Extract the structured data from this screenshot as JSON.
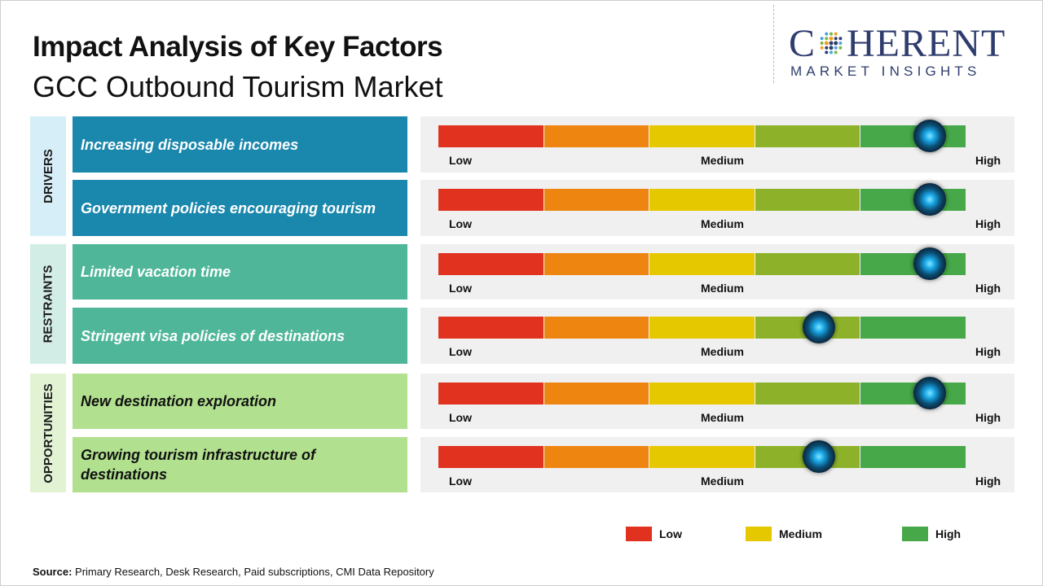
{
  "header": {
    "title": "Impact Analysis of Key Factors",
    "subtitle": "GCC Outbound Tourism Market"
  },
  "logo": {
    "word_left": "C",
    "word_right": "HERENT",
    "tagline": "MARKET INSIGHTS"
  },
  "scale_labels": {
    "low": "Low",
    "medium": "Medium",
    "high": "High"
  },
  "colors": {
    "segments": [
      "#e0321e",
      "#ee8510",
      "#e6c800",
      "#8db22a",
      "#46a848"
    ],
    "category_drivers": "#d6eef7",
    "category_restraints": "#d2ede5",
    "category_opportunities": "#e2f3d4",
    "factor_drivers": "#1a87ad",
    "factor_restraints": "#4fb699",
    "factor_opportunities": "#b1e08f"
  },
  "categories": [
    {
      "label": "DRIVERS"
    },
    {
      "label": "RESTRAINTS"
    },
    {
      "label": "OPPORTUNITIES"
    }
  ],
  "factors": [
    {
      "label": "Increasing disposable incomes"
    },
    {
      "label": "Government policies encouraging tourism"
    },
    {
      "label": "Limited vacation time"
    },
    {
      "label": "Stringent visa policies of destinations"
    },
    {
      "label": "New destination exploration"
    },
    {
      "label": "Growing tourism infrastructure of destinations"
    }
  ],
  "legend": [
    {
      "label": "Low",
      "color": "#e0321e"
    },
    {
      "label": "Medium",
      "color": "#e6c800"
    },
    {
      "label": "High",
      "color": "#46a848"
    }
  ],
  "source": {
    "prefix": "Source:",
    "text": "Primary Research, Desk Research, Paid subscriptions, CMI Data Repository"
  },
  "chart_data": {
    "type": "bar",
    "title": "Impact Analysis of Key Factors",
    "subtitle": "GCC Outbound Tourism Market",
    "scale": [
      "Low",
      "Medium",
      "High"
    ],
    "xlim": [
      0,
      1
    ],
    "categories": [
      "Increasing disposable incomes",
      "Government policies encouraging tourism",
      "Limited vacation time",
      "Stringent visa policies of destinations",
      "New destination exploration",
      "Growing tourism infrastructure of destinations"
    ],
    "groups": [
      "DRIVERS",
      "DRIVERS",
      "RESTRAINTS",
      "RESTRAINTS",
      "OPPORTUNITIES",
      "OPPORTUNITIES"
    ],
    "values": [
      0.93,
      0.93,
      0.93,
      0.72,
      0.93,
      0.72
    ],
    "legend": [
      "Low",
      "Medium",
      "High"
    ],
    "legend_position": "bottom-right"
  }
}
